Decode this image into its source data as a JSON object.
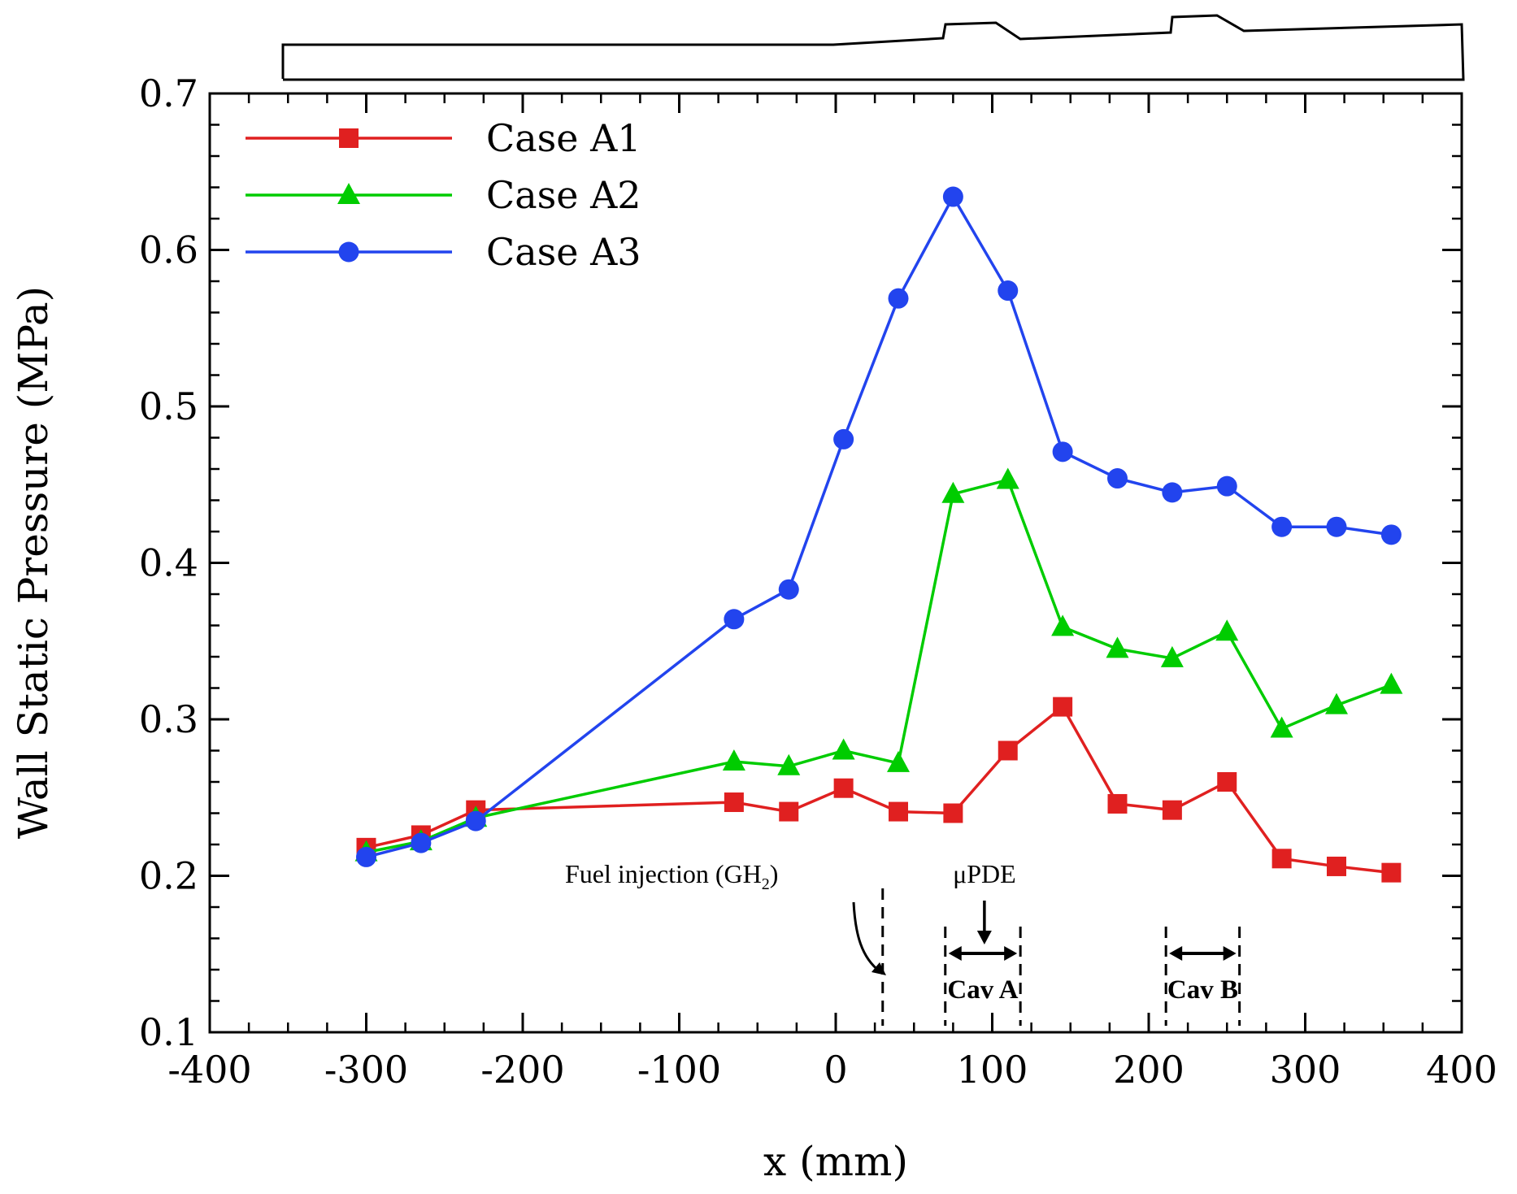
{
  "chart_data": {
    "type": "line",
    "title": "",
    "xlabel": "x (mm)",
    "ylabel": "Wall Static Pressure (MPa)",
    "xlim": [
      -400,
      400
    ],
    "ylim": [
      0.1,
      0.7
    ],
    "xticks": [
      -400,
      -300,
      -200,
      -100,
      0,
      100,
      200,
      300,
      400
    ],
    "yticks": [
      0.1,
      0.2,
      0.3,
      0.4,
      0.5,
      0.6,
      0.7
    ],
    "xtick_labels": [
      "-400",
      "-300",
      "-200",
      "-100",
      "0",
      "100",
      "200",
      "300",
      "400"
    ],
    "ytick_labels": [
      "0.1",
      "0.2",
      "0.3",
      "0.4",
      "0.5",
      "0.6",
      "0.7"
    ],
    "legend_position": "top-left",
    "grid": false,
    "series": [
      {
        "name": "Case A1",
        "color": "#e02020",
        "marker": "square",
        "x": [
          -300,
          -265,
          -230,
          -65,
          -30,
          5,
          40,
          75,
          110,
          145,
          180,
          215,
          250,
          285,
          320,
          355
        ],
        "y": [
          0.218,
          0.226,
          0.242,
          0.247,
          0.241,
          0.256,
          0.241,
          0.24,
          0.28,
          0.308,
          0.246,
          0.242,
          0.26,
          0.211,
          0.206,
          0.202
        ]
      },
      {
        "name": "Case A2",
        "color": "#00cc00",
        "marker": "triangle",
        "x": [
          -300,
          -265,
          -230,
          -65,
          -30,
          5,
          40,
          75,
          110,
          145,
          180,
          215,
          250,
          285,
          320,
          355
        ],
        "y": [
          0.215,
          0.222,
          0.237,
          0.273,
          0.27,
          0.28,
          0.272,
          0.444,
          0.453,
          0.359,
          0.345,
          0.339,
          0.356,
          0.294,
          0.309,
          0.322
        ]
      },
      {
        "name": "Case A3",
        "color": "#2244ee",
        "marker": "circle",
        "x": [
          -300,
          -265,
          -230,
          -65,
          -30,
          5,
          40,
          75,
          110,
          145,
          180,
          215,
          250,
          285,
          320,
          355
        ],
        "y": [
          0.212,
          0.221,
          0.235,
          0.364,
          0.383,
          0.479,
          0.569,
          0.634,
          0.574,
          0.471,
          0.454,
          0.445,
          0.449,
          0.423,
          0.423,
          0.418
        ]
      }
    ],
    "annotations": {
      "fuel_injection": {
        "label": "Fuel injection (GH",
        "subscript": "2",
        "suffix": ")",
        "x": 30
      },
      "updE": {
        "label": "μPDE",
        "x": 95
      },
      "cav_a": {
        "label": "Cav A",
        "x_start": 70,
        "x_end": 118
      },
      "cav_b": {
        "label": "Cav B",
        "x_start": 211,
        "x_end": 258
      }
    }
  }
}
